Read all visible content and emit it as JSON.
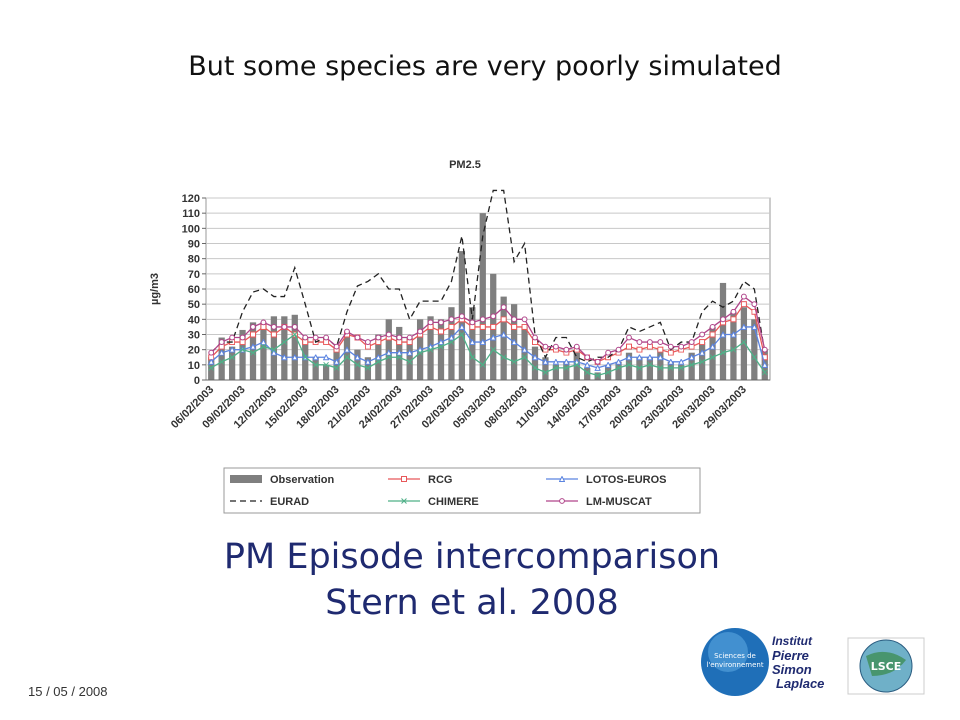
{
  "slide": {
    "title": "But some species are very poorly simulated",
    "caption": [
      "PM Episode intercomparison",
      "Stern et al. 2008"
    ],
    "date": "15 / 05 / 2008"
  },
  "logos": {
    "circle": [
      "Sciences de",
      "l'environnement"
    ],
    "institute": [
      "Institut",
      "Pierre",
      "Simon",
      "Laplace"
    ],
    "lab": "LSCE"
  },
  "chart_data": {
    "type": "line",
    "title": "PM2.5",
    "y_label": "µg/m3",
    "categories": [
      "06/02/2003",
      null,
      null,
      "09/02/2003",
      null,
      null,
      "12/02/2003",
      null,
      null,
      "15/02/2003",
      null,
      null,
      "18/02/2003",
      null,
      null,
      "21/02/2003",
      null,
      null,
      "24/02/2003",
      null,
      null,
      "27/02/2003",
      null,
      null,
      "02/03/2003",
      null,
      null,
      "05/03/2003",
      null,
      null,
      "08/03/2003",
      null,
      null,
      "11/03/2003",
      null,
      null,
      "14/03/2003",
      null,
      null,
      "17/03/2003",
      null,
      null,
      "20/03/2003",
      null,
      null,
      "23/03/2003",
      null,
      null,
      "26/03/2003",
      null,
      null,
      "29/03/2003",
      null,
      null
    ],
    "ylim": [
      0,
      120
    ],
    "yticks": [
      0,
      10,
      20,
      30,
      40,
      50,
      60,
      70,
      80,
      90,
      100,
      110,
      120
    ],
    "grid": true,
    "series": [
      {
        "name": "Observation",
        "type": "bar",
        "color": "#7f7f7f",
        "values": [
          15,
          28,
          22,
          33,
          38,
          38,
          42,
          42,
          43,
          28,
          15,
          10,
          22,
          28,
          20,
          15,
          30,
          40,
          35,
          28,
          40,
          42,
          40,
          48,
          85,
          48,
          110,
          70,
          55,
          50,
          35,
          22,
          15,
          10,
          12,
          18,
          8,
          5,
          10,
          12,
          18,
          15,
          15,
          20,
          12,
          10,
          18,
          25,
          35,
          64,
          45,
          48,
          40,
          20
        ]
      },
      {
        "name": "RCG",
        "type": "line",
        "color": "#e8585a",
        "marker": "square",
        "values": [
          15,
          22,
          25,
          25,
          30,
          35,
          30,
          35,
          30,
          25,
          25,
          25,
          20,
          30,
          28,
          22,
          25,
          28,
          25,
          25,
          30,
          35,
          32,
          35,
          40,
          35,
          35,
          35,
          40,
          35,
          35,
          25,
          20,
          20,
          18,
          20,
          15,
          12,
          15,
          18,
          22,
          20,
          22,
          20,
          18,
          20,
          22,
          25,
          30,
          38,
          40,
          50,
          45,
          15
        ]
      },
      {
        "name": "LOTOS-EUROS",
        "type": "line",
        "color": "#5b84e0",
        "marker": "triangle",
        "values": [
          12,
          18,
          20,
          20,
          22,
          25,
          18,
          15,
          15,
          15,
          15,
          15,
          12,
          20,
          15,
          12,
          15,
          18,
          18,
          18,
          20,
          22,
          25,
          28,
          35,
          25,
          25,
          28,
          30,
          25,
          20,
          15,
          12,
          12,
          12,
          12,
          10,
          8,
          10,
          12,
          15,
          15,
          15,
          15,
          12,
          12,
          15,
          18,
          22,
          30,
          30,
          35,
          35,
          10
        ]
      },
      {
        "name": "EURAD",
        "type": "line",
        "color": "#222222",
        "dashed": true,
        "values": [
          18,
          25,
          25,
          45,
          58,
          60,
          55,
          55,
          74,
          50,
          25,
          28,
          22,
          45,
          62,
          65,
          70,
          60,
          60,
          40,
          52,
          52,
          52,
          65,
          95,
          40,
          95,
          125,
          125,
          78,
          90,
          30,
          15,
          28,
          28,
          15,
          12,
          15,
          15,
          20,
          35,
          32,
          35,
          38,
          20,
          25,
          25,
          45,
          52,
          48,
          52,
          65,
          60,
          18
        ]
      },
      {
        "name": "CHIMERE",
        "type": "line",
        "color": "#4fb088",
        "marker": "x",
        "values": [
          8,
          12,
          15,
          20,
          18,
          22,
          20,
          25,
          30,
          15,
          10,
          10,
          8,
          15,
          10,
          8,
          12,
          15,
          15,
          12,
          18,
          20,
          22,
          25,
          30,
          15,
          10,
          20,
          15,
          12,
          15,
          8,
          5,
          8,
          8,
          10,
          5,
          3,
          5,
          8,
          10,
          8,
          10,
          8,
          8,
          8,
          10,
          12,
          15,
          18,
          20,
          25,
          15,
          5
        ]
      },
      {
        "name": "LM-MUSCAT",
        "type": "line",
        "color": "#b0458a",
        "marker": "circle",
        "values": [
          18,
          25,
          28,
          28,
          35,
          38,
          35,
          35,
          35,
          28,
          28,
          28,
          22,
          32,
          28,
          25,
          28,
          30,
          28,
          28,
          32,
          38,
          38,
          40,
          42,
          38,
          40,
          42,
          48,
          40,
          40,
          28,
          22,
          22,
          20,
          22,
          15,
          12,
          18,
          20,
          28,
          25,
          25,
          25,
          22,
          22,
          25,
          30,
          35,
          40,
          45,
          55,
          50,
          20
        ]
      }
    ]
  }
}
